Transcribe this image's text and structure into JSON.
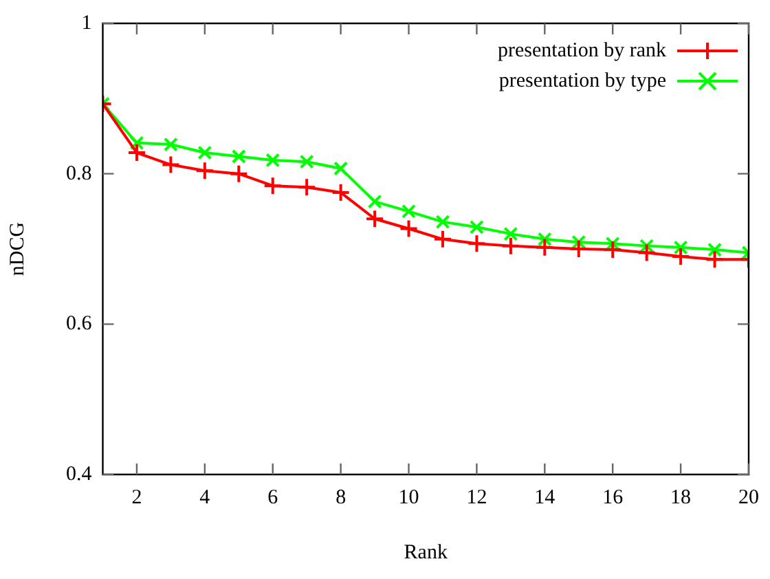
{
  "chart_data": {
    "type": "line",
    "xlabel": "Rank",
    "ylabel": "nDCG",
    "x": [
      1,
      2,
      3,
      4,
      5,
      6,
      7,
      8,
      9,
      10,
      11,
      12,
      13,
      14,
      15,
      16,
      17,
      18,
      19,
      20
    ],
    "series": [
      {
        "name": "presentation by rank",
        "color": "#ff0000",
        "marker": "cross",
        "values": [
          0.893,
          0.828,
          0.812,
          0.804,
          0.8,
          0.784,
          0.782,
          0.775,
          0.74,
          0.727,
          0.713,
          0.707,
          0.704,
          0.702,
          0.7,
          0.699,
          0.695,
          0.69,
          0.686,
          0.686
        ]
      },
      {
        "name": "presentation by type",
        "color": "#00ff00",
        "marker": "x",
        "values": [
          0.893,
          0.841,
          0.839,
          0.828,
          0.823,
          0.818,
          0.816,
          0.807,
          0.763,
          0.75,
          0.736,
          0.729,
          0.72,
          0.713,
          0.709,
          0.707,
          0.704,
          0.702,
          0.699,
          0.695
        ]
      }
    ],
    "xlim": [
      1,
      20
    ],
    "xticks": [
      2,
      4,
      6,
      8,
      10,
      12,
      14,
      16,
      18,
      20
    ],
    "ylim": [
      0.4,
      1
    ],
    "yticks": [
      0.4,
      0.6,
      0.8,
      {
        "value": 1,
        "label": "1"
      }
    ],
    "grid": false,
    "legend": "top right",
    "line_style": "solid"
  }
}
